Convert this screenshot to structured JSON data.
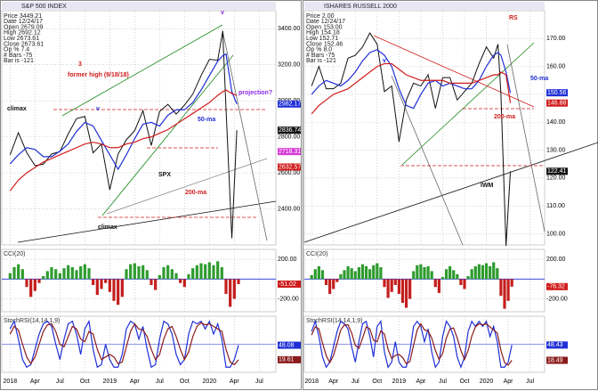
{
  "chart_data": [
    {
      "type": "line",
      "title": "S&P 500 INDEX",
      "info": [
        "Price 3449.21",
        "Date 12/24/17",
        "Open 2679.09",
        "High 2692.12",
        "Low 2673.61",
        "Close 2673.61",
        "Op % 7.4",
        "# Bars -75",
        "Bar is -121"
      ],
      "annotations": [
        "3",
        "former high (9/18/18)",
        "climax",
        "v",
        "50-ma",
        "SPX",
        "200-ma",
        "projection?",
        "climax",
        "v"
      ],
      "x": [
        0,
        1,
        2,
        3,
        4,
        5,
        6,
        7,
        8,
        9,
        10,
        11,
        12,
        13,
        14,
        15,
        16,
        17,
        18,
        19,
        20,
        21,
        22,
        23,
        24,
        25,
        25.6,
        26,
        26.7,
        27.3
      ],
      "series": [
        {
          "name": "SPX",
          "color": "#111111",
          "values": [
            2700,
            2823,
            2713,
            2640,
            2648,
            2705,
            2718,
            2816,
            2901,
            2913,
            2711,
            2760,
            2506,
            2704,
            2784,
            2834,
            2945,
            2752,
            2941,
            2980,
            2926,
            2976,
            3037,
            3140,
            3230,
            3225,
            3386,
            2954,
            2237,
            2836.74
          ]
        },
        {
          "name": "50-ma",
          "color": "#1f2fd6",
          "values": [
            2650,
            2700,
            2740,
            2730,
            2690,
            2690,
            2720,
            2760,
            2830,
            2880,
            2860,
            2780,
            2700,
            2620,
            2700,
            2790,
            2870,
            2880,
            2860,
            2920,
            2950,
            2950,
            2990,
            3060,
            3140,
            3220,
            3250,
            3260,
            3050,
            2982.17
          ]
        },
        {
          "name": "200-ma",
          "color": "#d01c1c",
          "values": [
            2500,
            2560,
            2600,
            2630,
            2660,
            2680,
            2700,
            2720,
            2740,
            2760,
            2770,
            2760,
            2740,
            2740,
            2760,
            2770,
            2790,
            2800,
            2820,
            2840,
            2870,
            2900,
            2930,
            2960,
            2990,
            3030,
            3050,
            3060,
            3040,
            3030
          ]
        }
      ],
      "badges": [
        {
          "value": 2982.17,
          "color": "#1f2fd6"
        },
        {
          "value": 2836.74,
          "color": "#111111"
        },
        {
          "value": 2718.31,
          "color": "#d63ad6"
        },
        {
          "value": 2632.57,
          "color": "#d01c1c"
        }
      ],
      "xlim": [
        -1,
        32
      ],
      "ylim": [
        2200,
        3500
      ],
      "yticks": [
        {
          "value": 2400,
          "label": "2400.00"
        },
        {
          "value": 2600,
          "label": "2600.00"
        },
        {
          "value": 2800,
          "label": "2800.00"
        },
        {
          "value": 3000,
          "label": "3000.00"
        },
        {
          "value": 3200,
          "label": "3200.00"
        },
        {
          "value": 3400,
          "label": "3400.00"
        }
      ]
    },
    {
      "type": "bar",
      "title": "CCI(20)",
      "x": [
        0,
        0.5,
        1,
        1.5,
        2,
        2.5,
        3,
        3.5,
        4,
        4.5,
        5,
        5.5,
        6,
        6.5,
        7,
        7.5,
        8,
        8.5,
        9,
        9.5,
        10,
        10.5,
        11,
        11.5,
        12,
        12.5,
        13,
        13.5,
        14,
        14.5,
        15,
        15.5,
        16,
        16.5,
        17,
        17.5,
        18,
        18.5,
        19,
        19.5,
        20,
        20.5,
        21,
        21.5,
        22,
        22.5,
        23,
        23.5,
        24,
        24.5,
        25,
        25.5,
        26,
        26.5,
        27,
        27.5
      ],
      "values": [
        60,
        120,
        150,
        100,
        -80,
        -180,
        -120,
        -40,
        30,
        80,
        120,
        100,
        60,
        110,
        140,
        120,
        90,
        130,
        150,
        110,
        -60,
        -160,
        -100,
        -40,
        -130,
        -220,
        -260,
        -180,
        100,
        150,
        160,
        130,
        140,
        90,
        -60,
        -110,
        40,
        120,
        140,
        100,
        60,
        -40,
        -80,
        50,
        110,
        140,
        160,
        150,
        170,
        140,
        180,
        120,
        -150,
        -280,
        -200,
        -51.02
      ],
      "badges": [
        {
          "value": -51.02,
          "color": "#d01c1c"
        }
      ],
      "xlim": [
        -1,
        32
      ],
      "ylim": [
        -330,
        300
      ],
      "yticks": [
        {
          "value": 200,
          "label": "200.00"
        },
        {
          "value": -200,
          "label": "-200.00"
        }
      ]
    },
    {
      "type": "line",
      "title": "StochRSI(14,14,1,9)",
      "x": [
        0,
        0.5,
        1,
        1.5,
        2,
        2.5,
        3,
        3.5,
        4,
        4.5,
        5,
        5.5,
        6,
        6.5,
        7,
        7.5,
        8,
        8.5,
        9,
        9.5,
        10,
        10.5,
        11,
        11.5,
        12,
        12.5,
        13,
        13.5,
        14,
        14.5,
        15,
        15.5,
        16,
        16.5,
        17,
        17.5,
        18,
        18.5,
        19,
        19.5,
        20,
        20.5,
        21,
        21.5,
        22,
        22.5,
        23,
        23.5,
        24,
        24.5,
        25,
        25.5,
        26,
        26.5,
        27,
        27.5
      ],
      "series": [
        {
          "name": "StochRSI",
          "color": "#1f2fd6",
          "values": [
            80,
            95,
            60,
            20,
            5,
            10,
            40,
            70,
            90,
            95,
            85,
            50,
            20,
            60,
            90,
            95,
            70,
            30,
            80,
            95,
            40,
            5,
            10,
            50,
            20,
            5,
            5,
            30,
            80,
            95,
            90,
            60,
            85,
            40,
            5,
            10,
            60,
            95,
            90,
            70,
            30,
            10,
            20,
            70,
            95,
            90,
            95,
            80,
            95,
            70,
            90,
            60,
            5,
            5,
            20,
            48.08
          ]
        },
        {
          "name": "Signal",
          "color": "#8b1a1a",
          "values": [
            70,
            85,
            78,
            50,
            25,
            12,
            25,
            50,
            75,
            88,
            90,
            75,
            50,
            45,
            65,
            85,
            80,
            60,
            55,
            75,
            70,
            40,
            20,
            25,
            30,
            25,
            12,
            15,
            45,
            75,
            90,
            80,
            78,
            65,
            40,
            20,
            30,
            60,
            80,
            85,
            65,
            40,
            20,
            35,
            65,
            85,
            92,
            88,
            90,
            85,
            80,
            75,
            40,
            15,
            10,
            19.61
          ]
        }
      ],
      "badges": [
        {
          "value": 48.08,
          "color": "#1f2fd6"
        },
        {
          "value": 19.61,
          "color": "#8b1a1a"
        }
      ],
      "xlim": [
        -1,
        32
      ],
      "ylim": [
        -5,
        105
      ],
      "xticks": [
        {
          "value": 0,
          "label": "2018"
        },
        {
          "value": 3,
          "label": "Apr"
        },
        {
          "value": 6,
          "label": "Jul"
        },
        {
          "value": 9,
          "label": "Oct"
        },
        {
          "value": 12,
          "label": "2019"
        },
        {
          "value": 15,
          "label": "Apr"
        },
        {
          "value": 18,
          "label": "Jul"
        },
        {
          "value": 21,
          "label": "Oct"
        },
        {
          "value": 24,
          "label": "2020"
        },
        {
          "value": 27,
          "label": "Apr"
        },
        {
          "value": 30,
          "label": "Jul"
        }
      ]
    },
    {
      "type": "line",
      "title": "ISHARES RUSSELL 2000",
      "info": [
        "Price 2.00",
        "Date 12/24/17",
        "Open 153.00",
        "High 154.18",
        "Low 152.71",
        "Close 152.46",
        "Op % 8.0",
        "# Bars -75",
        "Bar is -121"
      ],
      "annotations": [
        "RS",
        "50-ma",
        "200-ma",
        "IWM",
        "v"
      ],
      "x": [
        0,
        1,
        2,
        3,
        4,
        5,
        6,
        7,
        8,
        9,
        10,
        11,
        12,
        13,
        14,
        15,
        16,
        17,
        18,
        19,
        20,
        21,
        22,
        23,
        24,
        25,
        25.6,
        26,
        26.7,
        27.3
      ],
      "series": [
        {
          "name": "IWM",
          "color": "#111111",
          "values": [
            153,
            160,
            152,
            152,
            154,
            163,
            164,
            167,
            172,
            168,
            151,
            153,
            133,
            148,
            154,
            153,
            157,
            145,
            156,
            156,
            148,
            151,
            154,
            161,
            167,
            163,
            168,
            150,
            95.7,
            122.41
          ]
        },
        {
          "name": "50-ma",
          "color": "#1f2fd6",
          "values": [
            150,
            153,
            155,
            154,
            153,
            155,
            158,
            162,
            165,
            166,
            164,
            160,
            152,
            146,
            145,
            150,
            154,
            155,
            153,
            154,
            153,
            152,
            152,
            155,
            160,
            164,
            165,
            164,
            158,
            150.56
          ]
        },
        {
          "name": "200-ma",
          "color": "#d01c1c",
          "values": [
            143,
            146,
            148,
            150,
            151,
            152,
            154,
            156,
            158,
            160,
            161,
            161,
            159,
            157,
            156,
            155,
            155,
            155,
            155,
            154,
            154,
            154,
            154,
            155,
            156,
            157,
            157,
            158,
            157,
            146.88
          ]
        }
      ],
      "badges": [
        {
          "value": 150.56,
          "color": "#1f2fd6"
        },
        {
          "value": 146.88,
          "color": "#d01c1c"
        },
        {
          "value": 122.41,
          "color": "#111111"
        }
      ],
      "xlim": [
        -1,
        32
      ],
      "ylim": [
        96,
        180
      ],
      "yticks": [
        {
          "value": 100,
          "label": "100.00"
        },
        {
          "value": 110,
          "label": "110.00"
        },
        {
          "value": 120,
          "label": "120.00"
        },
        {
          "value": 130,
          "label": "130.00"
        },
        {
          "value": 140,
          "label": "140.00"
        },
        {
          "value": 150,
          "label": "150.00"
        },
        {
          "value": 160,
          "label": "160.00"
        },
        {
          "value": 170,
          "label": "170.00"
        }
      ]
    },
    {
      "type": "bar",
      "title": "CCI(20)",
      "x": [
        0,
        0.5,
        1,
        1.5,
        2,
        2.5,
        3,
        3.5,
        4,
        4.5,
        5,
        5.5,
        6,
        6.5,
        7,
        7.5,
        8,
        8.5,
        9,
        9.5,
        10,
        10.5,
        11,
        11.5,
        12,
        12.5,
        13,
        13.5,
        14,
        14.5,
        15,
        15.5,
        16,
        16.5,
        17,
        17.5,
        18,
        18.5,
        19,
        19.5,
        20,
        20.5,
        21,
        21.5,
        22,
        22.5,
        23,
        23.5,
        24,
        24.5,
        25,
        25.5,
        26,
        26.5,
        27,
        27.5
      ],
      "values": [
        40,
        100,
        130,
        90,
        -60,
        -150,
        -100,
        -30,
        50,
        90,
        130,
        110,
        80,
        120,
        150,
        130,
        100,
        140,
        160,
        120,
        -80,
        -190,
        -130,
        -60,
        -150,
        -240,
        -290,
        -200,
        80,
        140,
        150,
        120,
        130,
        80,
        -80,
        -140,
        20,
        100,
        130,
        90,
        50,
        -60,
        -100,
        30,
        100,
        130,
        150,
        140,
        160,
        130,
        170,
        110,
        -170,
        -300,
        -220,
        -76.32
      ],
      "badges": [
        {
          "value": -76.32,
          "color": "#d01c1c"
        }
      ],
      "xlim": [
        -1,
        32
      ],
      "ylim": [
        -330,
        300
      ],
      "yticks": [
        {
          "value": 200,
          "label": "200.00"
        },
        {
          "value": -200,
          "label": "-200.00"
        }
      ]
    },
    {
      "type": "line",
      "title": "StochRSI(14,14,1,9)",
      "x": [
        0,
        0.5,
        1,
        1.5,
        2,
        2.5,
        3,
        3.5,
        4,
        4.5,
        5,
        5.5,
        6,
        6.5,
        7,
        7.5,
        8,
        8.5,
        9,
        9.5,
        10,
        10.5,
        11,
        11.5,
        12,
        12.5,
        13,
        13.5,
        14,
        14.5,
        15,
        15.5,
        16,
        16.5,
        17,
        17.5,
        18,
        18.5,
        19,
        19.5,
        20,
        20.5,
        21,
        21.5,
        22,
        22.5,
        23,
        23.5,
        24,
        24.5,
        25,
        25.5,
        26,
        26.5,
        27,
        27.5
      ],
      "series": [
        {
          "name": "StochRSI",
          "color": "#1f2fd6",
          "values": [
            75,
            95,
            65,
            25,
            5,
            15,
            45,
            75,
            95,
            90,
            80,
            45,
            15,
            55,
            90,
            95,
            65,
            25,
            85,
            95,
            35,
            5,
            15,
            55,
            15,
            5,
            5,
            35,
            85,
            95,
            85,
            55,
            80,
            35,
            5,
            15,
            65,
            95,
            85,
            65,
            25,
            5,
            25,
            75,
            95,
            85,
            95,
            85,
            95,
            65,
            85,
            55,
            5,
            5,
            15,
            48.43
          ]
        },
        {
          "name": "Signal",
          "color": "#8b1a1a",
          "values": [
            68,
            84,
            80,
            52,
            28,
            14,
            28,
            52,
            78,
            88,
            88,
            72,
            48,
            42,
            62,
            84,
            80,
            58,
            55,
            76,
            70,
            40,
            22,
            28,
            30,
            24,
            12,
            16,
            48,
            78,
            90,
            78,
            76,
            62,
            38,
            20,
            32,
            62,
            80,
            82,
            62,
            38,
            20,
            38,
            66,
            84,
            90,
            88,
            90,
            84,
            78,
            72,
            38,
            14,
            9,
            18.49
          ]
        }
      ],
      "badges": [
        {
          "value": 48.43,
          "color": "#1f2fd6"
        },
        {
          "value": 18.49,
          "color": "#8b1a1a"
        }
      ],
      "xlim": [
        -1,
        32
      ],
      "ylim": [
        -5,
        105
      ],
      "xticks": [
        {
          "value": 0,
          "label": "2018"
        },
        {
          "value": 3,
          "label": "Apr"
        },
        {
          "value": 6,
          "label": "Jul"
        },
        {
          "value": 9,
          "label": "Oct"
        },
        {
          "value": 12,
          "label": "2019"
        },
        {
          "value": 15,
          "label": "Apr"
        },
        {
          "value": 18,
          "label": "Jul"
        },
        {
          "value": 21,
          "label": "Oct"
        },
        {
          "value": 24,
          "label": "2020"
        },
        {
          "value": 27,
          "label": "Apr"
        },
        {
          "value": 30,
          "label": "Jul"
        }
      ]
    }
  ]
}
